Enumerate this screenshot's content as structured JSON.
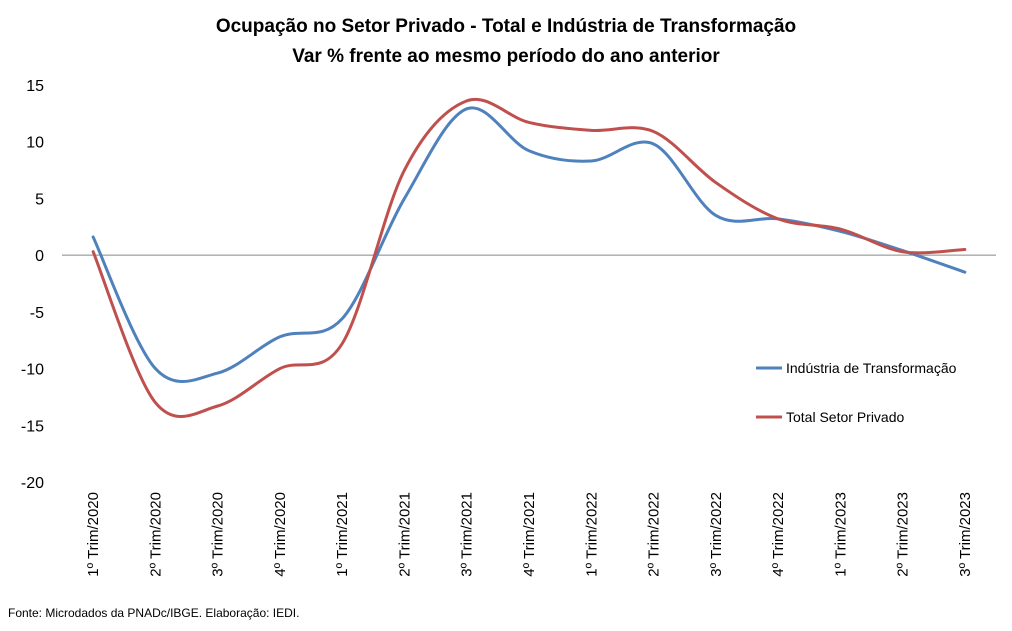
{
  "chart_data": {
    "type": "line",
    "title": "Ocupação no Setor Privado - Total e Indústria de Transformação",
    "subtitle": "Var % frente ao mesmo período do ano anterior",
    "categories": [
      "1º Trim/2020",
      "2º Trim/2020",
      "3º Trim/2020",
      "4º Trim/2020",
      "1º Trim/2021",
      "2º Trim/2021",
      "3º Trim/2021",
      "4º Trim/2021",
      "1º Trim/2022",
      "2º Trim/2022",
      "3º Trim/2022",
      "4º Trim/2022",
      "1º Trim/2023",
      "2º Trim/2023",
      "3º Trim/2023"
    ],
    "series": [
      {
        "name": "Indústria de Transformação",
        "color": "#4F81BD",
        "values": [
          1.6,
          -10.0,
          -10.4,
          -7.2,
          -5.6,
          5.0,
          12.9,
          9.2,
          8.3,
          9.8,
          3.5,
          3.2,
          2.1,
          0.4,
          -1.5
        ]
      },
      {
        "name": "Total Setor Privado",
        "color": "#C0504D",
        "values": [
          0.3,
          -13.0,
          -13.3,
          -10.0,
          -7.8,
          7.5,
          13.6,
          11.7,
          11.0,
          10.9,
          6.4,
          3.2,
          2.3,
          0.3,
          0.5
        ]
      }
    ],
    "ylim": [
      -20,
      15
    ],
    "yticks": [
      "15",
      "10",
      "5",
      "0",
      "-5",
      "-10",
      "-15",
      "-20"
    ],
    "legend_position": "right",
    "grid": false
  },
  "source_note": "Fonte: Microdados da PNADc/IBGE. Elaboração: IEDI."
}
